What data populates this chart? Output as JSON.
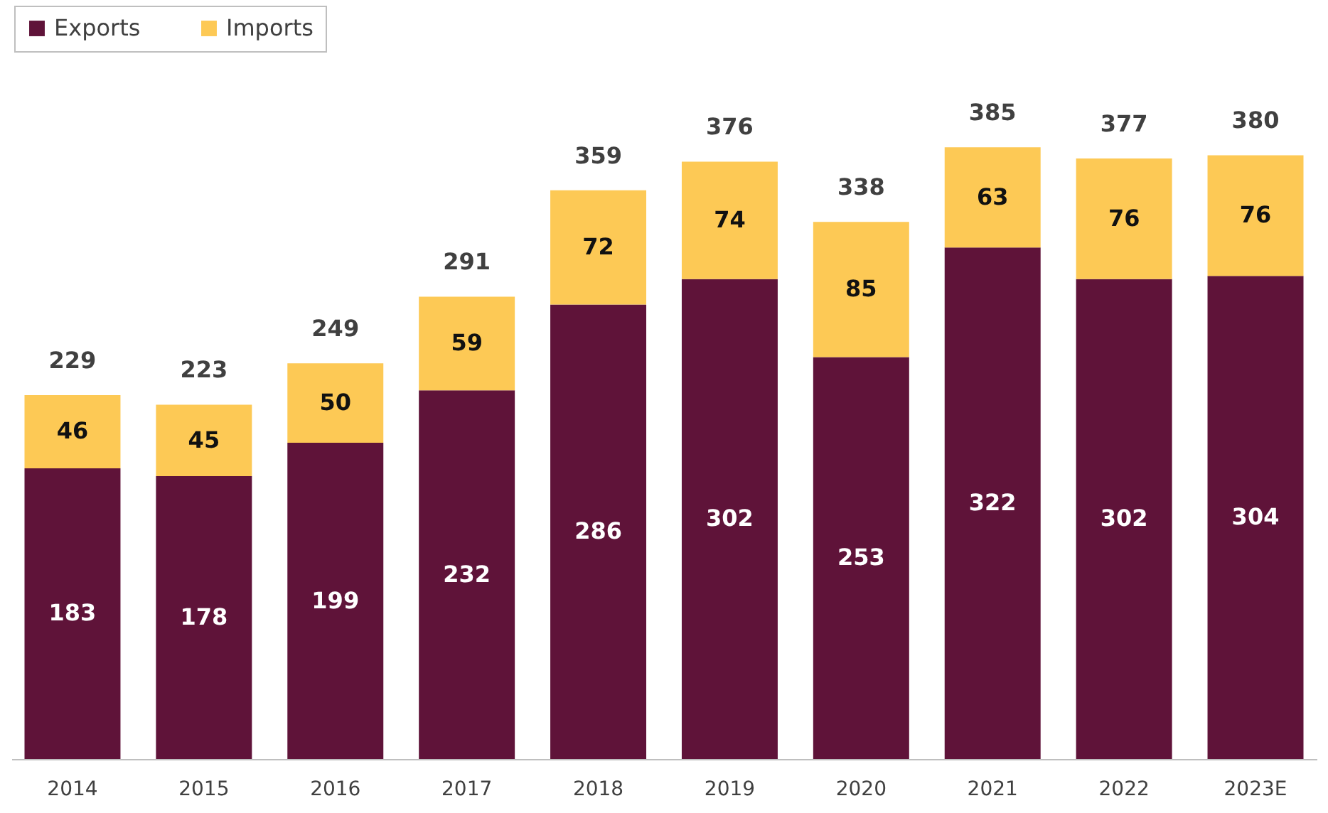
{
  "chart_data": {
    "type": "bar",
    "stacked": true,
    "categories": [
      "2014",
      "2015",
      "2016",
      "2017",
      "2018",
      "2019",
      "2020",
      "2021",
      "2022",
      "2023E"
    ],
    "series": [
      {
        "name": "Exports",
        "color": "#5f1339",
        "values": [
          183,
          178,
          199,
          232,
          286,
          302,
          253,
          322,
          302,
          304
        ]
      },
      {
        "name": "Imports",
        "color": "#fdc955",
        "values": [
          46,
          45,
          50,
          59,
          72,
          74,
          85,
          63,
          76,
          76
        ]
      }
    ],
    "totals": [
      "229",
      "223",
      "249",
      "291",
      "359",
      "376",
      "338",
      "385",
      "377",
      "380"
    ],
    "data_labels": true,
    "legend": "top left",
    "grid": false
  }
}
